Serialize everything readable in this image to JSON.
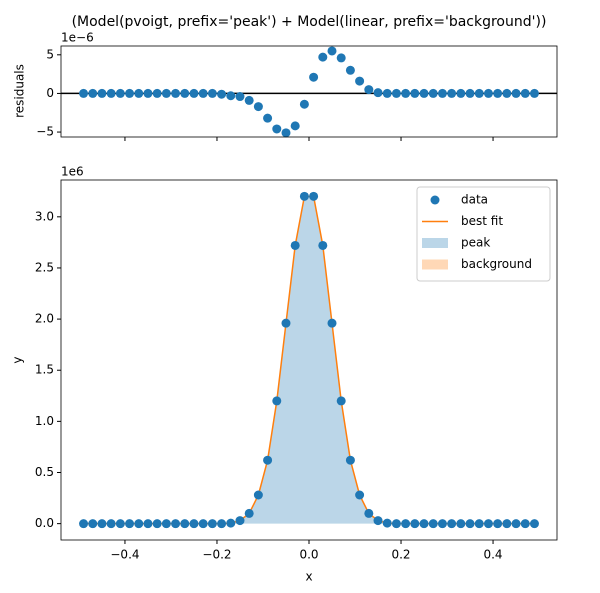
{
  "chart_data": [
    {
      "type": "scatter",
      "title": "(Model(pvoigt, prefix='peak') + Model(linear, prefix='background'))",
      "ylabel": "residuals",
      "offset_text": "1e−6",
      "x": [
        -0.49,
        -0.47,
        -0.45,
        -0.43,
        -0.41,
        -0.39,
        -0.37,
        -0.35,
        -0.33,
        -0.31,
        -0.29,
        -0.27,
        -0.25,
        -0.23,
        -0.21,
        -0.19,
        -0.17,
        -0.15,
        -0.13,
        -0.11,
        -0.09,
        -0.07,
        -0.05,
        -0.03,
        -0.01,
        0.01,
        0.03,
        0.05,
        0.07,
        0.09,
        0.11,
        0.13,
        0.15,
        0.17,
        0.19,
        0.21,
        0.23,
        0.25,
        0.27,
        0.29,
        0.31,
        0.33,
        0.35,
        0.37,
        0.39,
        0.41,
        0.43,
        0.45,
        0.47,
        0.49
      ],
      "series": [
        {
          "kind": "scatter",
          "color": "#1f77b4",
          "values": [
            0,
            0,
            0,
            0,
            0,
            0,
            0,
            0,
            0,
            0,
            0,
            0,
            0,
            0,
            0,
            -0.1,
            -0.3,
            -0.4,
            -0.9,
            -1.7,
            -3.2,
            -4.6,
            -5.1,
            -4.2,
            -1.4,
            2.1,
            4.7,
            5.5,
            4.6,
            3.0,
            1.6,
            0.5,
            0.1,
            0,
            0,
            0,
            0,
            0,
            0,
            0,
            0,
            0,
            0,
            0,
            0,
            0,
            0,
            0,
            0,
            0
          ]
        }
      ],
      "axhline": 0,
      "xlim": [
        -0.539,
        0.539
      ],
      "ylim": [
        -5.64,
        6.14
      ],
      "xticks": [
        -0.4,
        -0.2,
        0,
        0.2,
        0.4
      ],
      "xtick_labels": false,
      "yticks": [
        {
          "value": -5,
          "label": "−5"
        },
        0,
        5
      ]
    },
    {
      "type": "line",
      "xlabel": "x",
      "ylabel": "y",
      "offset_text": "1e6",
      "x": [
        -0.49,
        -0.47,
        -0.45,
        -0.43,
        -0.41,
        -0.39,
        -0.37,
        -0.35,
        -0.33,
        -0.31,
        -0.29,
        -0.27,
        -0.25,
        -0.23,
        -0.21,
        -0.19,
        -0.17,
        -0.15,
        -0.13,
        -0.11,
        -0.09,
        -0.07,
        -0.05,
        -0.03,
        -0.01,
        0.01,
        0.03,
        0.05,
        0.07,
        0.09,
        0.11,
        0.13,
        0.15,
        0.17,
        0.19,
        0.21,
        0.23,
        0.25,
        0.27,
        0.29,
        0.31,
        0.33,
        0.35,
        0.37,
        0.39,
        0.41,
        0.43,
        0.45,
        0.47,
        0.49
      ],
      "series": [
        {
          "name": "data",
          "kind": "scatter",
          "color": "#1f77b4",
          "values": [
            0,
            0,
            0,
            0,
            0,
            0,
            0,
            0,
            0,
            0,
            0,
            0,
            0,
            0,
            0,
            0,
            0.005,
            0.03,
            0.1,
            0.28,
            0.62,
            1.2,
            1.96,
            2.72,
            3.2,
            3.2,
            2.72,
            1.96,
            1.2,
            0.62,
            0.28,
            0.1,
            0.03,
            0.005,
            0,
            0,
            0,
            0,
            0,
            0,
            0,
            0,
            0,
            0,
            0,
            0,
            0,
            0,
            0,
            0
          ]
        },
        {
          "name": "best fit",
          "kind": "line",
          "color": "#ff7f0e",
          "values": [
            0,
            0,
            0,
            0,
            0,
            0,
            0,
            0,
            0,
            0,
            0,
            0,
            0,
            0,
            0,
            0,
            0.005,
            0.03,
            0.1,
            0.28,
            0.62,
            1.2,
            1.96,
            2.72,
            3.2,
            3.2,
            2.72,
            1.96,
            1.2,
            0.62,
            0.28,
            0.1,
            0.03,
            0.005,
            0,
            0,
            0,
            0,
            0,
            0,
            0,
            0,
            0,
            0,
            0,
            0,
            0,
            0,
            0,
            0
          ]
        },
        {
          "name": "peak",
          "kind": "area",
          "color": "#1f77b4",
          "values": [
            0,
            0,
            0,
            0,
            0,
            0,
            0,
            0,
            0,
            0,
            0,
            0,
            0,
            0,
            0,
            0,
            0.005,
            0.03,
            0.1,
            0.28,
            0.62,
            1.2,
            1.96,
            2.72,
            3.2,
            3.2,
            2.72,
            1.96,
            1.2,
            0.62,
            0.28,
            0.1,
            0.03,
            0.005,
            0,
            0,
            0,
            0,
            0,
            0,
            0,
            0,
            0,
            0,
            0,
            0,
            0,
            0,
            0,
            0
          ]
        },
        {
          "name": "background",
          "kind": "area",
          "color": "#ff7f0e",
          "values": [
            0,
            0,
            0,
            0,
            0,
            0,
            0,
            0,
            0,
            0,
            0,
            0,
            0,
            0,
            0,
            0,
            0,
            0,
            0,
            0,
            0,
            0,
            0,
            0,
            0,
            0,
            0,
            0,
            0,
            0,
            0,
            0,
            0,
            0,
            0,
            0,
            0,
            0,
            0,
            0,
            0,
            0,
            0,
            0,
            0,
            0,
            0,
            0,
            0,
            0
          ]
        }
      ],
      "legend": "upper right",
      "xlim": [
        -0.539,
        0.539
      ],
      "ylim": [
        -0.16,
        3.36
      ],
      "xticks": [
        {
          "value": -0.4,
          "label": "−0.4"
        },
        {
          "value": -0.2,
          "label": "−0.2"
        },
        {
          "value": 0,
          "label": "0.0"
        },
        0.2,
        0.4
      ],
      "xtick_labels": true,
      "yticks": [
        {
          "value": 0,
          "label": "0.0"
        },
        0.5,
        {
          "value": 1,
          "label": "1.0"
        },
        1.5,
        {
          "value": 2,
          "label": "2.0"
        },
        2.5,
        {
          "value": 3,
          "label": "3.0"
        }
      ]
    }
  ]
}
